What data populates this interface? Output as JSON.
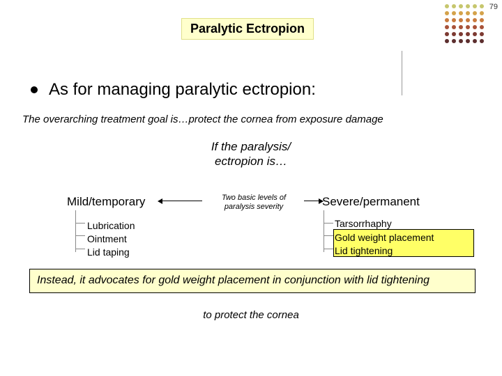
{
  "page_number": "79",
  "title": "Paralytic Ectropion",
  "bullet_text": "As for managing paralytic ectropion:",
  "overarching": "The overarching treatment goal is…protect the cornea from exposure damage",
  "if_line1": "If the paralysis/",
  "if_line2": "ectropion is…",
  "mild_label": "Mild/temporary",
  "severe_label": "Severe/permanent",
  "center_caption1": "Two basic levels of",
  "center_caption2": "paralysis severity",
  "mild_items": {
    "a": "Lubrication",
    "b": "Ointment",
    "c": "Lid taping"
  },
  "severe_items": {
    "a": "Tarsorrhaphy",
    "b": "Gold weight placement",
    "c": "Lid tightening"
  },
  "callout": "Instead, it advocates for gold weight placement in conjunction with lid tightening",
  "protect": "to protect the cornea",
  "colors": {
    "highlight_bg": "#ffffcc",
    "bright_highlight": "#ffff66",
    "dot_colors": [
      "#c6c66d",
      "#c6c66d",
      "#c6c66d",
      "#c6c66d",
      "#c6c66d",
      "#c6c66d",
      "#d4a24a",
      "#d4a24a",
      "#d4a24a",
      "#d4a24a",
      "#d4a24a",
      "#d4a24a",
      "#c97b3e",
      "#c97b3e",
      "#c97b3e",
      "#c97b3e",
      "#c97b3e",
      "#c97b3e",
      "#a85238",
      "#a85238",
      "#a85238",
      "#a85238",
      "#a85238",
      "#a85238",
      "#7d3a32",
      "#7d3a32",
      "#7d3a32",
      "#7d3a32",
      "#7d3a32",
      "#7d3a32",
      "#5c2e2e",
      "#5c2e2e",
      "#5c2e2e",
      "#5c2e2e",
      "#5c2e2e",
      "#5c2e2e"
    ]
  }
}
